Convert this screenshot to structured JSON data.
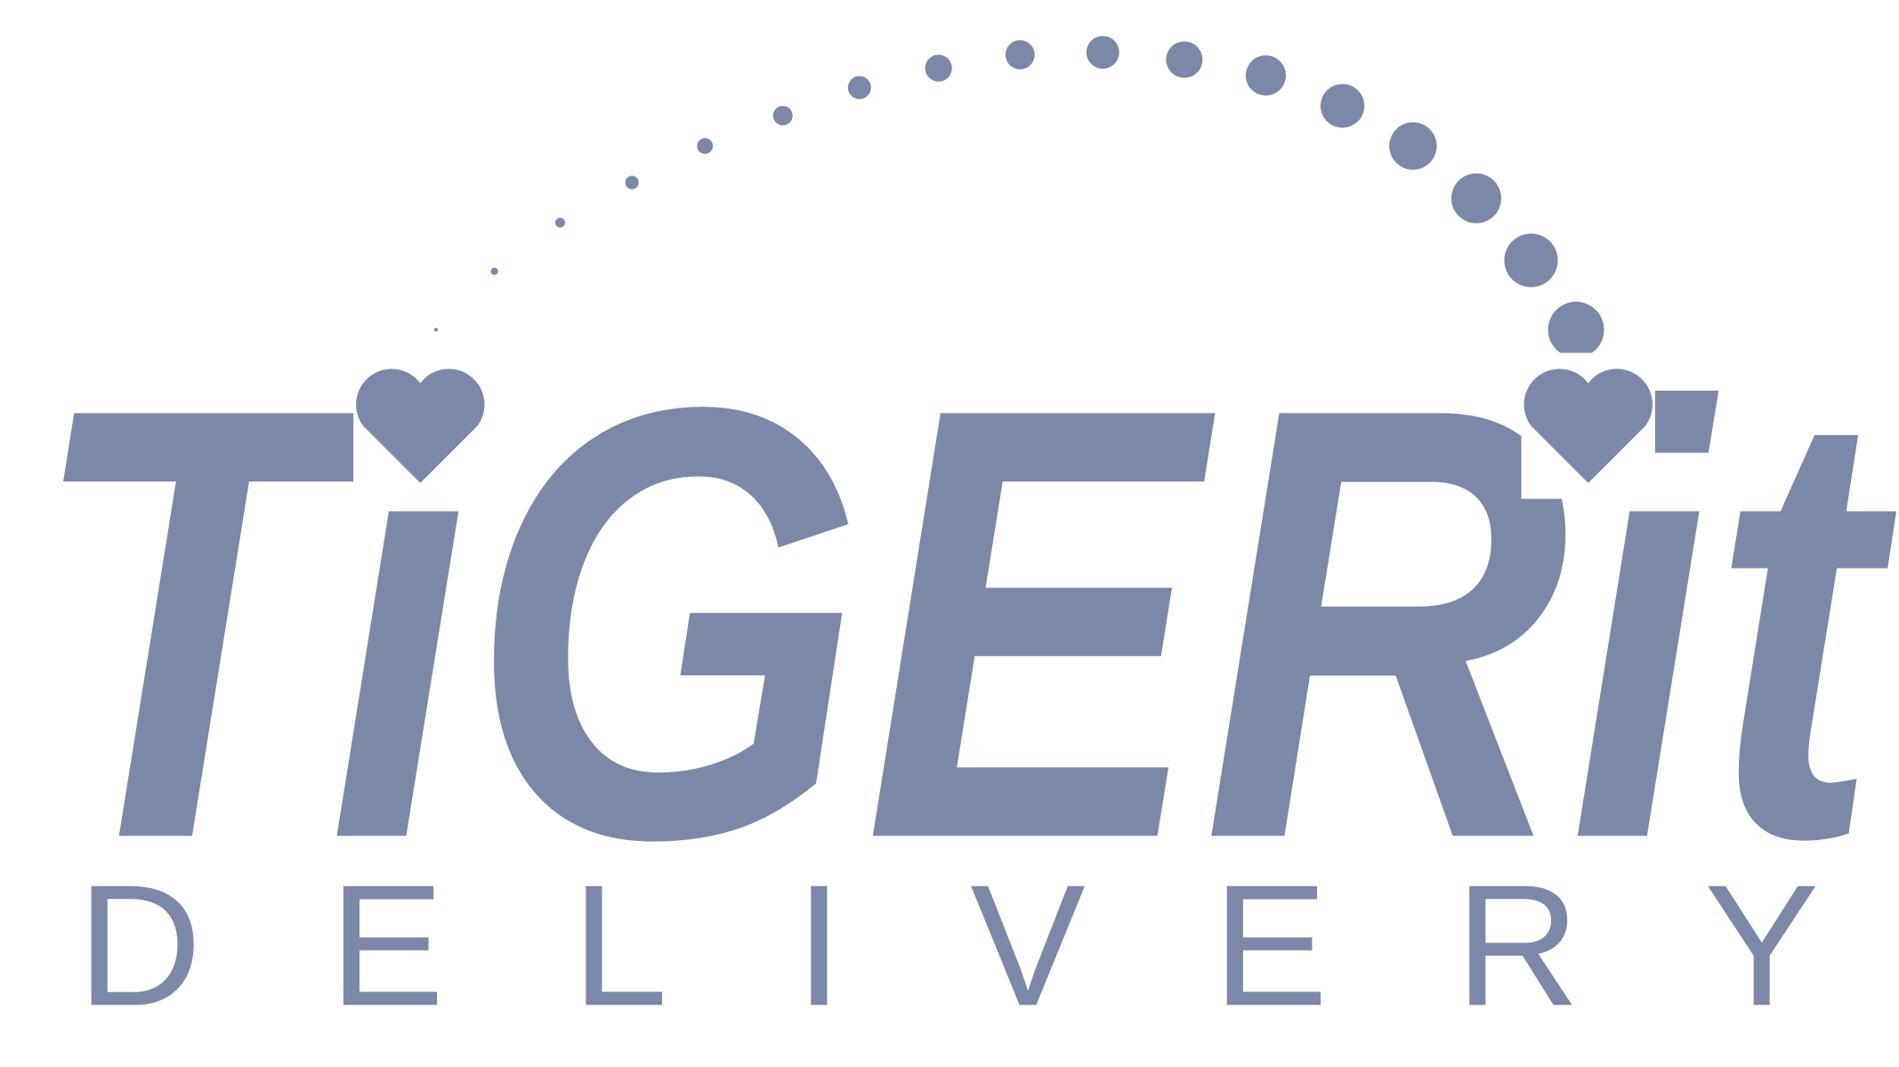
{
  "logo": {
    "wordmark": "TiGERit",
    "tagline": "DELIVERY"
  }
}
